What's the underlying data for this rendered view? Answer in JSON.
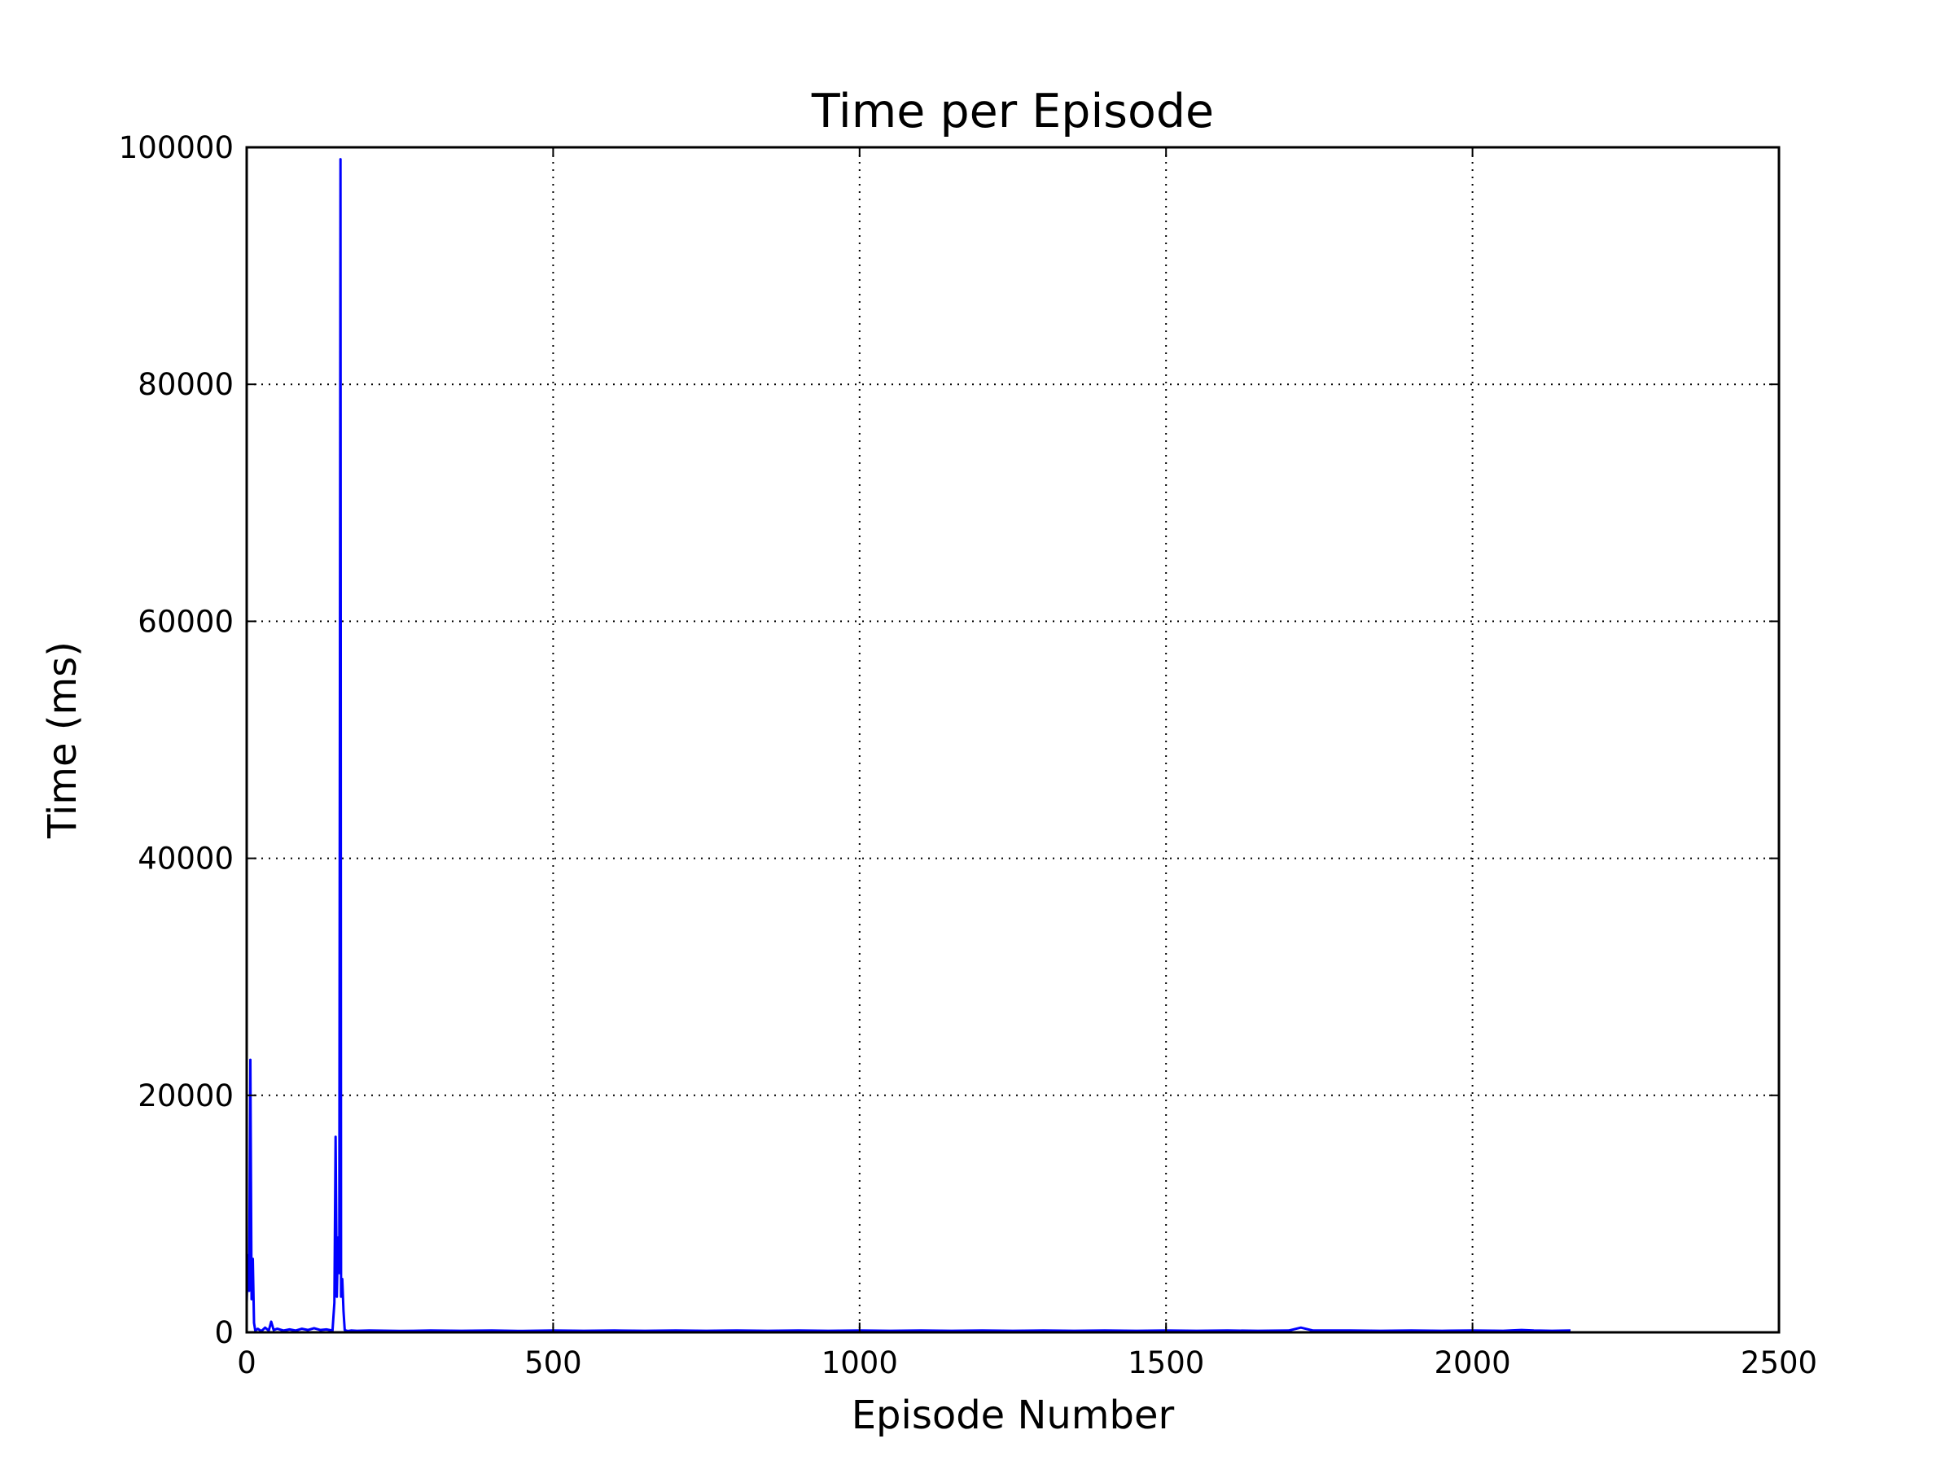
{
  "chart_data": {
    "type": "line",
    "title": "Time per Episode",
    "xlabel": "Episode Number",
    "ylabel": "Time (ms)",
    "xlim": [
      0,
      2500
    ],
    "ylim": [
      0,
      100000
    ],
    "x_ticks": [
      0,
      500,
      1000,
      1500,
      2000,
      2500
    ],
    "y_ticks": [
      0,
      20000,
      40000,
      60000,
      80000,
      100000
    ],
    "grid": true,
    "legend": "none",
    "colors": {
      "series": "#0000ff",
      "grid": "#000000",
      "axes": "#000000"
    },
    "series": [
      {
        "color": "#0000ff",
        "x": [
          0,
          2,
          4,
          6,
          8,
          10,
          12,
          14,
          18,
          24,
          30,
          36,
          40,
          44,
          50,
          60,
          70,
          80,
          90,
          100,
          110,
          120,
          130,
          140,
          143,
          145,
          147,
          149,
          151,
          153,
          154,
          156,
          158,
          160,
          162,
          165,
          170,
          180,
          200,
          250,
          300,
          350,
          400,
          450,
          500,
          550,
          600,
          650,
          700,
          750,
          800,
          850,
          900,
          950,
          1000,
          1050,
          1100,
          1150,
          1200,
          1250,
          1300,
          1350,
          1400,
          1450,
          1500,
          1550,
          1600,
          1650,
          1700,
          1720,
          1740,
          1800,
          1850,
          1900,
          1950,
          2000,
          2050,
          2080,
          2100,
          2130,
          2160
        ],
        "y": [
          2500,
          6500,
          3500,
          23000,
          2800,
          6200,
          800,
          150,
          300,
          100,
          400,
          150,
          900,
          200,
          300,
          150,
          250,
          150,
          300,
          200,
          350,
          200,
          250,
          150,
          2500,
          16500,
          3000,
          8000,
          5000,
          99000,
          3000,
          4500,
          1800,
          200,
          150,
          120,
          150,
          130,
          150,
          120,
          150,
          130,
          150,
          120,
          150,
          130,
          150,
          130,
          150,
          130,
          150,
          130,
          150,
          130,
          150,
          130,
          150,
          130,
          150,
          130,
          150,
          130,
          150,
          130,
          150,
          130,
          150,
          130,
          150,
          400,
          150,
          150,
          130,
          150,
          130,
          150,
          130,
          200,
          150,
          130,
          150
        ]
      }
    ]
  }
}
